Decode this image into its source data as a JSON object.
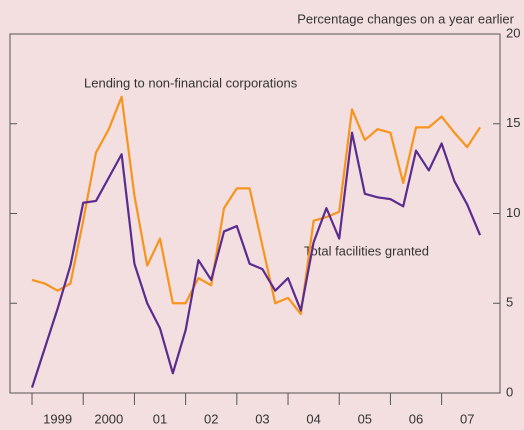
{
  "chart_data": {
    "type": "line",
    "subtitle": "Percentage changes on a year earlier",
    "annotations": [
      "Lending to non-financial corporations",
      "Total facilities granted"
    ],
    "x": [
      1999,
      1999.25,
      1999.5,
      1999.75,
      2000,
      2000.25,
      2000.5,
      2000.75,
      2001,
      2001.25,
      2001.5,
      2001.75,
      2002,
      2002.25,
      2002.5,
      2002.75,
      2003,
      2003.25,
      2003.5,
      2003.75,
      2004,
      2004.25,
      2004.5,
      2004.75,
      2005,
      2005.25,
      2005.5,
      2005.75,
      2006,
      2006.25,
      2006.5,
      2006.75,
      2007,
      2007.25,
      2007.5,
      2007.75
    ],
    "series": [
      {
        "name": "Lending to non-financial corporations",
        "color": "#f7941d",
        "values": [
          6.3,
          6.1,
          5.7,
          6.1,
          9.6,
          13.4,
          14.7,
          16.5,
          11.0,
          7.1,
          8.6,
          5.0,
          5.0,
          6.4,
          6.0,
          10.3,
          11.4,
          11.4,
          8.2,
          5.0,
          5.3,
          4.4,
          9.6,
          9.8,
          10.1,
          15.8,
          14.1,
          14.7,
          14.5,
          11.7,
          14.8,
          14.8,
          15.4,
          14.5,
          13.7,
          14.8
        ]
      },
      {
        "name": "Total facilities granted",
        "color": "#5b2c8f",
        "values": [
          0.3,
          2.5,
          4.7,
          7.1,
          10.6,
          10.7,
          12.0,
          13.3,
          7.2,
          5.0,
          3.6,
          1.1,
          3.5,
          7.4,
          6.3,
          9.0,
          9.3,
          7.2,
          6.9,
          5.7,
          6.4,
          4.6,
          8.4,
          10.3,
          8.6,
          14.5,
          11.1,
          10.9,
          10.8,
          10.4,
          13.5,
          12.4,
          13.9,
          11.8,
          10.5,
          8.8
        ]
      }
    ],
    "xlim": [
      1998.57,
      2008.14
    ],
    "xticks": [
      {
        "value": 1999.5,
        "label": "1999"
      },
      {
        "value": 2000.5,
        "label": "2000"
      },
      {
        "value": 2001.5,
        "label": "01"
      },
      {
        "value": 2002.5,
        "label": "02"
      },
      {
        "value": 2003.5,
        "label": "03"
      },
      {
        "value": 2004.5,
        "label": "04"
      },
      {
        "value": 2005.5,
        "label": "05"
      },
      {
        "value": 2006.5,
        "label": "06"
      },
      {
        "value": 2007.5,
        "label": "07"
      }
    ],
    "ylim": [
      0,
      20
    ],
    "yticks": [
      0,
      5,
      10,
      15,
      20
    ]
  }
}
